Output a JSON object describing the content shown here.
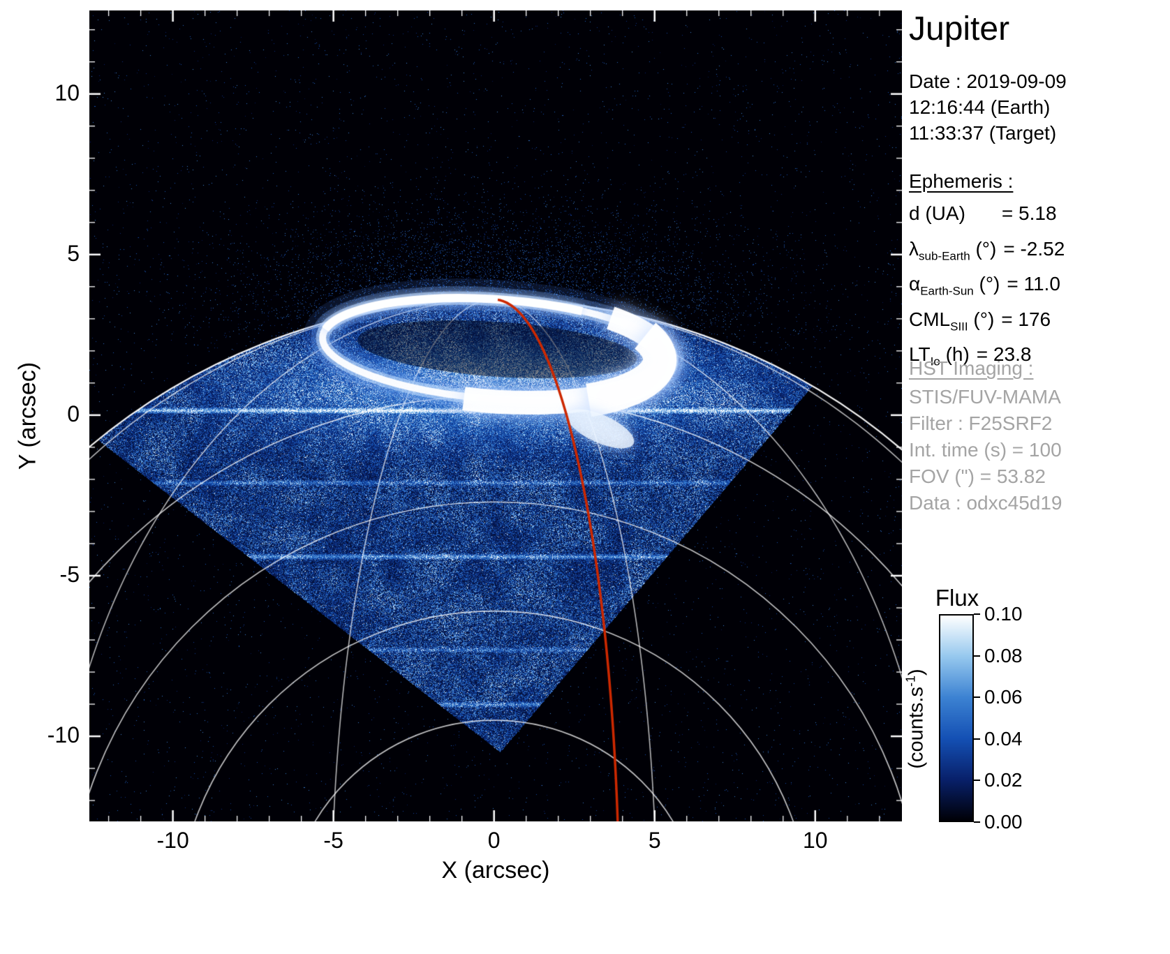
{
  "title": "Jupiter",
  "info_panel": {
    "date_lines": [
      "Date : 2019-09-09",
      "12:16:44 (Earth)",
      "11:33:37 (Target)"
    ],
    "ephemeris_heading": "Ephemeris :",
    "ephemeris_rows": [
      {
        "pre": "d",
        "sub": "",
        "post": " (UA)",
        "val": "= 5.18"
      },
      {
        "pre": "λ",
        "sub": "sub-Earth",
        "post": " (°)",
        "val": "= -2.52"
      },
      {
        "pre": "α",
        "sub": "Earth-Sun",
        "post": " (°)",
        "val": "= 11.0"
      },
      {
        "pre": "CML",
        "sub": "SIII",
        "post": " (°)",
        "val": "= 176"
      },
      {
        "pre": "LT",
        "sub": "Io",
        "post": " (h)",
        "val": "= 23.8"
      }
    ],
    "hst_heading": "HST Imaging :",
    "hst_lines": [
      "STIS/FUV-MAMA",
      "Filter : F25SRF2",
      "Int. time (s) = 100",
      "FOV (\") = 53.82",
      "Data : odxc45d19"
    ]
  },
  "axes": {
    "x_label": "X (arcsec)",
    "y_label": "Y (arcsec)",
    "x_tick_labels": [
      "-10",
      "-5",
      "0",
      "5",
      "10"
    ],
    "y_tick_labels": [
      "-10",
      "-5",
      "0",
      "5",
      "10"
    ]
  },
  "colorbar": {
    "title": "Flux",
    "unit_pre": "(counts.s",
    "unit_sup": "-1",
    "unit_post": ")",
    "tick_labels": [
      "0.10",
      "0.08",
      "0.06",
      "0.04",
      "0.02",
      "0.00"
    ],
    "tick_values": [
      0.1,
      0.08,
      0.06,
      0.04,
      0.02,
      0.0
    ],
    "min": 0.0,
    "max": 0.1
  },
  "chart_data": {
    "type": "heatmap",
    "title": "Jupiter",
    "xlabel": "X (arcsec)",
    "ylabel": "Y (arcsec)",
    "xlim": [
      -12.6,
      12.7
    ],
    "ylim": [
      -12.65,
      12.6
    ],
    "xticks": [
      -10,
      -5,
      0,
      5,
      10
    ],
    "yticks": [
      -10,
      -5,
      0,
      5,
      10
    ],
    "flux_range_counts_per_s": [
      0.0,
      0.1
    ],
    "description": "HST STIS far-UV image of Jupiter's north polar aurora: bright white auroral oval near the limb, blue noisy airglow filling the rotated-square detector field of view, white planetary graticule arcs, and a red meridian line running from the pole to the bottom of the frame.",
    "colormap_stops": [
      [
        0.0,
        "#000006"
      ],
      [
        0.2,
        "#08206a"
      ],
      [
        0.4,
        "#1450b4"
      ],
      [
        0.6,
        "#3c82d2"
      ],
      [
        0.8,
        "#96c8ee"
      ],
      [
        1.0,
        "#ffffff"
      ]
    ],
    "planet": {
      "center_arcsec": [
        0,
        -16.0
      ],
      "radius_arcsec": 19.6
    },
    "detector_fov_vertices": [
      [
        0.2,
        -10.5
      ],
      [
        -12.3,
        -0.8
      ],
      [
        -1.9,
        11.4
      ],
      [
        10.6,
        1.7
      ]
    ],
    "graticule": {
      "circle_radii_arcsec": [
        6.5,
        9.9,
        13.3,
        16.6,
        19.6
      ],
      "meridian_lons_deg": [
        -75,
        -45,
        -15,
        15,
        45,
        75
      ]
    },
    "aurora_oval": {
      "center_arcsec": [
        0.1,
        2.05
      ],
      "semi_axes_arcsec": [
        5.45,
        1.55
      ],
      "rotation_deg": -4
    },
    "meridian_line": {
      "lon_deg": 11.5,
      "color": "#cc2800"
    },
    "detector_streak_rows_arcsec": [
      {
        "y": 0.15,
        "amp": 0.55
      },
      {
        "y": -2.1,
        "amp": 0.25
      },
      {
        "y": -4.4,
        "amp": 0.4
      },
      {
        "y": -7.3,
        "amp": 0.22
      },
      {
        "y": -9.0,
        "amp": 0.32
      }
    ],
    "glow": {
      "subauroral_center": [
        0.05,
        0.8
      ],
      "subauroral_sigma": [
        6.2,
        1.4
      ],
      "sky_center": [
        0.1,
        3.6
      ],
      "sky_sigma": [
        5.5,
        1.9
      ]
    }
  }
}
